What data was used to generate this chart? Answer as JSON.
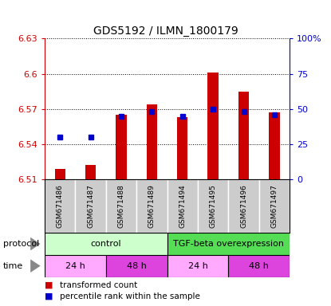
{
  "title": "GDS5192 / ILMN_1800179",
  "samples": [
    "GSM671486",
    "GSM671487",
    "GSM671488",
    "GSM671489",
    "GSM671494",
    "GSM671495",
    "GSM671496",
    "GSM671497"
  ],
  "red_values": [
    6.519,
    6.522,
    6.565,
    6.574,
    6.563,
    6.601,
    6.585,
    6.567
  ],
  "blue_percentiles": [
    30,
    30,
    45,
    48,
    45,
    50,
    48,
    46
  ],
  "y_min": 6.51,
  "y_max": 6.63,
  "y_ticks": [
    6.51,
    6.54,
    6.57,
    6.6,
    6.63
  ],
  "y_ticks_right": [
    0,
    25,
    50,
    75,
    100
  ],
  "protocol_groups": [
    {
      "label": "control",
      "start": 0,
      "end": 4,
      "color": "#ccffcc"
    },
    {
      "label": "TGF-beta overexpression",
      "start": 4,
      "end": 8,
      "color": "#55dd55"
    }
  ],
  "time_groups": [
    {
      "label": "24 h",
      "start": 0,
      "end": 2,
      "color": "#ffaaff"
    },
    {
      "label": "48 h",
      "start": 2,
      "end": 4,
      "color": "#dd44dd"
    },
    {
      "label": "24 h",
      "start": 4,
      "end": 6,
      "color": "#ffaaff"
    },
    {
      "label": "48 h",
      "start": 6,
      "end": 8,
      "color": "#dd44dd"
    }
  ],
  "red_color": "#cc0000",
  "blue_color": "#0000cc",
  "bar_bottom": 6.51,
  "bg_color": "#ffffff",
  "sample_area_color": "#cccccc",
  "tick_color_left": "#cc0000",
  "tick_color_right": "#0000cc",
  "bar_width": 0.35
}
